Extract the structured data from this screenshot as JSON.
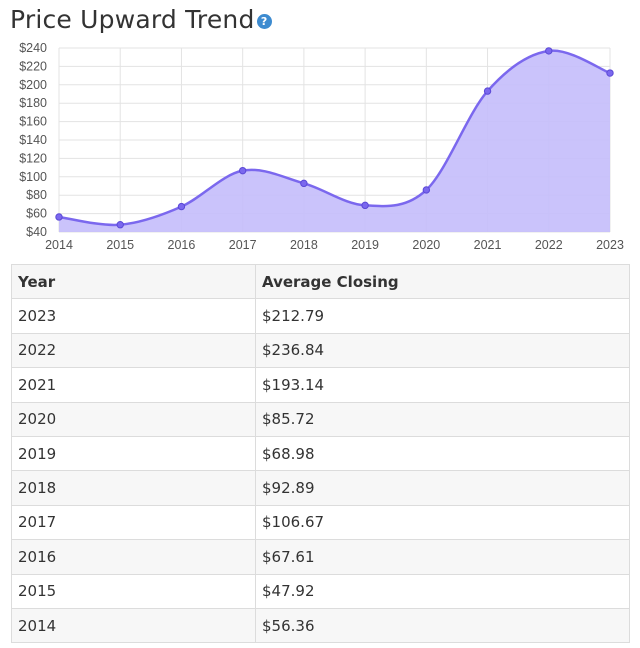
{
  "title": "Price Upward Trend",
  "help_icon": "help-icon",
  "colors": {
    "line": "#7b68ee",
    "fill": "#c4bcfb",
    "point": "#7b68ee"
  },
  "chart_data": {
    "type": "area",
    "title": "Price Upward Trend",
    "x": [
      2014,
      2015,
      2016,
      2017,
      2018,
      2019,
      2020,
      2021,
      2022,
      2023
    ],
    "values": [
      56.36,
      47.92,
      67.61,
      106.67,
      92.89,
      68.98,
      85.72,
      193.14,
      236.84,
      212.79
    ],
    "ylim": [
      40,
      240
    ],
    "yticks": [
      "$40",
      "$60",
      "$80",
      "$100",
      "$120",
      "$140",
      "$160",
      "$180",
      "$200",
      "$220",
      "$240"
    ],
    "xticks": [
      "2014",
      "2015",
      "2016",
      "2017",
      "2018",
      "2019",
      "2020",
      "2021",
      "2022",
      "2023"
    ],
    "grid": true,
    "xlabel": "",
    "ylabel": ""
  },
  "table": {
    "headers": [
      "Year",
      "Average Closing"
    ],
    "rows": [
      [
        "2023",
        "$212.79"
      ],
      [
        "2022",
        "$236.84"
      ],
      [
        "2021",
        "$193.14"
      ],
      [
        "2020",
        "$85.72"
      ],
      [
        "2019",
        "$68.98"
      ],
      [
        "2018",
        "$92.89"
      ],
      [
        "2017",
        "$106.67"
      ],
      [
        "2016",
        "$67.61"
      ],
      [
        "2015",
        "$47.92"
      ],
      [
        "2014",
        "$56.36"
      ]
    ]
  }
}
